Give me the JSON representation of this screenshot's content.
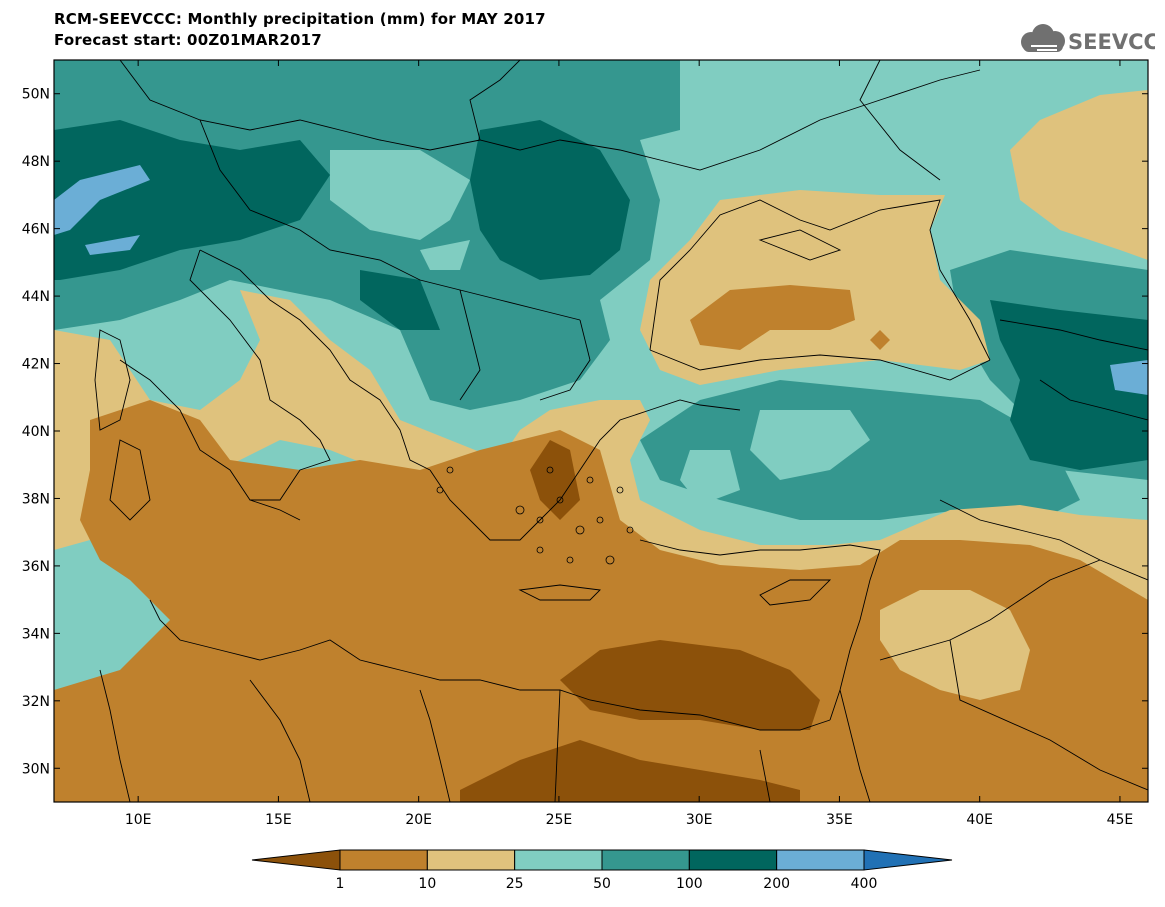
{
  "title": {
    "line1": "RCM-SEEVCCC: Monthly precipitation (mm) for MAY 2017",
    "line2": "Forecast start: 00Z01MAR2017"
  },
  "logo": {
    "text": "SEEVCCC",
    "icon": "cloud-icon"
  },
  "map": {
    "lon_range": [
      7,
      46
    ],
    "lat_range": [
      29,
      51
    ],
    "lat_labels": [
      "30N",
      "32N",
      "34N",
      "36N",
      "38N",
      "40N",
      "42N",
      "44N",
      "46N",
      "48N",
      "50N"
    ],
    "lon_labels": [
      "10E",
      "15E",
      "20E",
      "25E",
      "30E",
      "35E",
      "40E",
      "45E"
    ]
  },
  "colorbar": {
    "labels": [
      "1",
      "10",
      "25",
      "50",
      "100",
      "200",
      "400"
    ],
    "bins": [
      {
        "range": "<1",
        "color": "#8c510a"
      },
      {
        "range": "1-10",
        "color": "#bf812d"
      },
      {
        "range": "10-25",
        "color": "#dfc27d"
      },
      {
        "range": "25-50",
        "color": "#80cdc1"
      },
      {
        "range": "50-100",
        "color": "#35978f"
      },
      {
        "range": "100-200",
        "color": "#01665e"
      },
      {
        "range": "200-400",
        "color": "#6baed6"
      },
      {
        "range": ">400",
        "color": "#2171b5"
      }
    ]
  }
}
